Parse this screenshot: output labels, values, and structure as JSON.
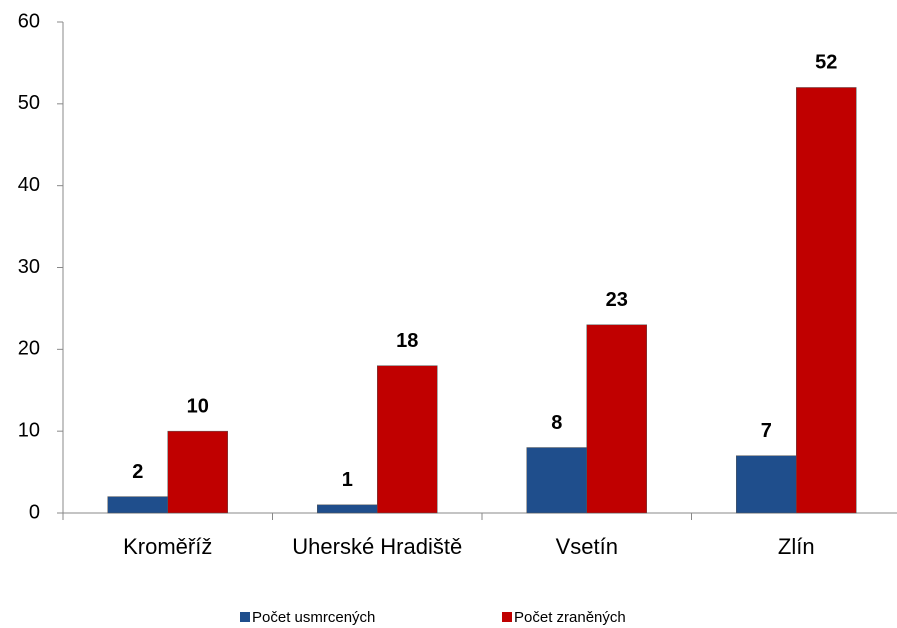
{
  "chart_data": {
    "type": "bar",
    "categories": [
      "Kroměříž",
      "Uherské Hradiště",
      "Vsetín",
      "Zlín"
    ],
    "series": [
      {
        "name": "Počet usmrcených",
        "color": "#1f4e8c",
        "values": [
          2,
          1,
          8,
          7
        ]
      },
      {
        "name": "Počet zraněných",
        "color": "#c00000",
        "values": [
          10,
          18,
          23,
          52
        ]
      }
    ],
    "ylim": [
      0,
      60
    ],
    "yticks": [
      0,
      10,
      20,
      30,
      40,
      50,
      60
    ],
    "grid": false,
    "legend": "bottom"
  }
}
